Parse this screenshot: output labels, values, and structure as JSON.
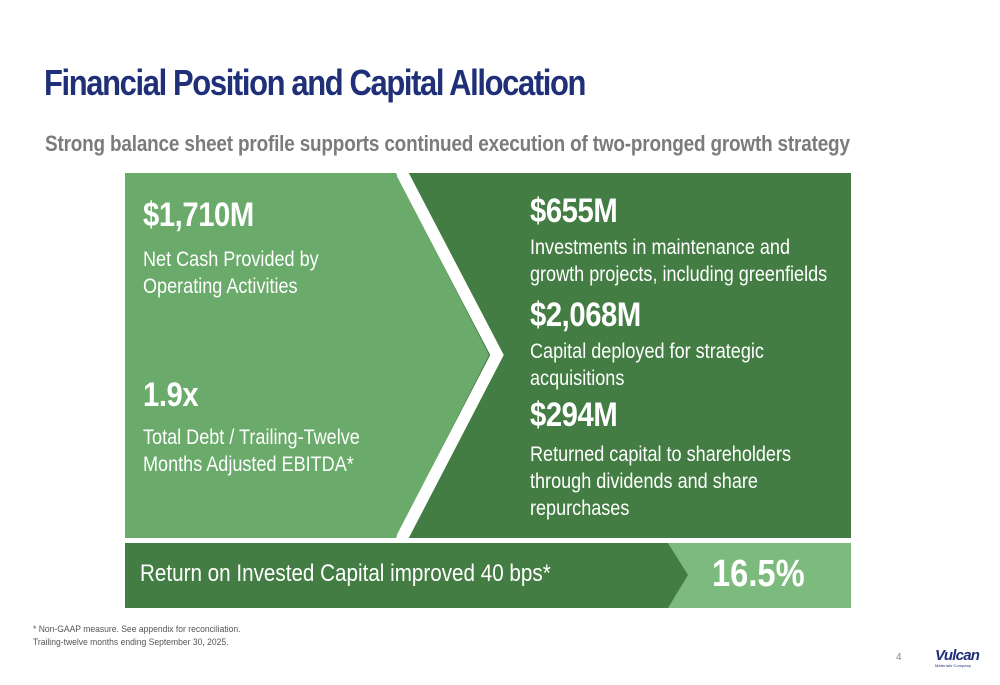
{
  "title": "Financial Position and Capital Allocation",
  "subtitle": "Strong balance sheet profile supports continued execution of two-pronged growth strategy",
  "left_panel": {
    "metric1_value": "$1,710M",
    "metric1_desc": [
      "Net Cash Provided by",
      "Operating Activities"
    ],
    "metric2_value": "1.9x",
    "metric2_desc": [
      "Total Debt / Trailing-Twelve",
      "Months Adjusted EBITDA*"
    ]
  },
  "right_panel": {
    "items": [
      {
        "value": "$655M",
        "desc": [
          "Investments in maintenance and",
          "growth projects, including greenfields"
        ]
      },
      {
        "value": "$2,068M",
        "desc": [
          "Capital deployed for strategic",
          "acquisitions"
        ]
      },
      {
        "value": "$294M",
        "desc": [
          "Returned capital to shareholders",
          "through dividends and share",
          "repurchases"
        ]
      }
    ]
  },
  "roic": {
    "label": "Return on Invested Capital improved 40 bps*",
    "value": "16.5%"
  },
  "footnotes": [
    "* Non-GAAP measure. See appendix for reconciliation.",
    "Trailing-twelve months ending September 30, 2025."
  ],
  "page_number": "4",
  "logo": {
    "word": "Vulcan",
    "sub": "Materials Company"
  },
  "colors": {
    "title": "#1f2f78",
    "subtitle": "#7b7b7b",
    "light_green": "#6aaa6a",
    "dark_green": "#437d43",
    "roic_bar": "#437d43",
    "roic_value_box": "#7dba7d"
  }
}
